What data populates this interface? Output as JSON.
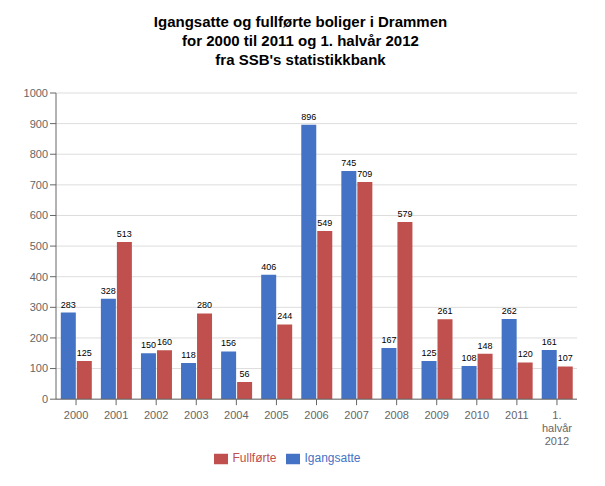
{
  "chart_data": {
    "type": "bar",
    "title": "Igangsatte og fullførte boliger i Drammen\nfor 2000 til 2011 og 1. halvår 2012\nfra SSB's statistikkbank",
    "categories": [
      "2000",
      "2001",
      "2002",
      "2003",
      "2004",
      "2005",
      "2006",
      "2007",
      "2008",
      "2009",
      "2010",
      "2011",
      "1.\nhalvår\n2012"
    ],
    "series": [
      {
        "name": "Igangsatte",
        "color": "#4472C4",
        "values": [
          283,
          328,
          150,
          118,
          156,
          406,
          896,
          745,
          167,
          125,
          108,
          262,
          161
        ]
      },
      {
        "name": "Fullførte",
        "color": "#C0504D",
        "values": [
          125,
          513,
          160,
          280,
          56,
          244,
          549,
          709,
          579,
          261,
          148,
          120,
          107
        ]
      }
    ],
    "ylim": [
      0,
      1000
    ],
    "yticks": [
      0,
      100,
      200,
      300,
      400,
      500,
      600,
      700,
      800,
      900,
      1000
    ],
    "grid": true,
    "data_labels": true,
    "legend": "bottom"
  }
}
